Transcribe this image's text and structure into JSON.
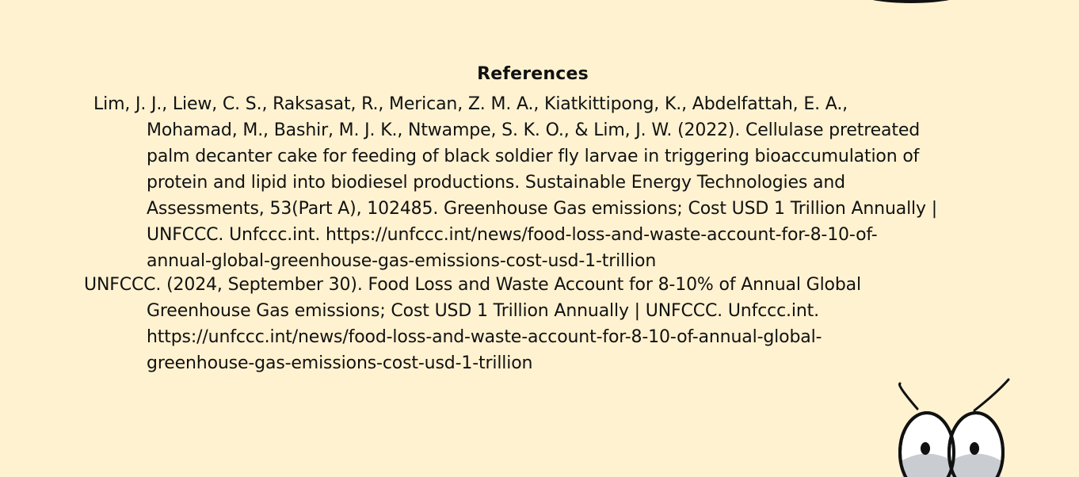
{
  "title": "References",
  "references": [
    {
      "lines": [
        "Lim, J. J., Liew, C. S., Raksasat, R., Merican, Z. M. A., Kiatkittipong, K., Abdelfattah, E. A.,",
        "Mohamad, M., Bashir, M. J. K., Ntwampe, S. K. O., & Lim, J. W. (2022). Cellulase pretreated",
        "palm decanter cake for feeding of black soldier fly larvae in triggering bioaccumulation of",
        "protein and lipid into biodiesel productions. Sustainable Energy Technologies and",
        "Assessments, 53(Part A), 102485. Greenhouse Gas emissions; Cost USD 1 Trillion Annually |",
        "UNFCCC. Unfccc.int. https://unfccc.int/news/food-loss-and-waste-account-for-8-10-of-",
        "annual-global-greenhouse-gas-emissions-cost-usd-1-trillion"
      ]
    },
    {
      "lines": [
        "UNFCCC. (2024, September 30). Food Loss and Waste Account for 8-10% of Annual Global",
        "Greenhouse Gas emissions; Cost USD 1 Trillion Annually | UNFCCC. Unfccc.int.",
        "https://unfccc.int/news/food-loss-and-waste-account-for-8-10-of-annual-global-",
        "greenhouse-gas-emissions-cost-usd-1-trillion"
      ]
    }
  ],
  "decorations": {
    "mascot_icon": "cartoon-fly-mascot-icon",
    "blob_icon": "black-blob-decoration",
    "background": "#fff2d1"
  }
}
